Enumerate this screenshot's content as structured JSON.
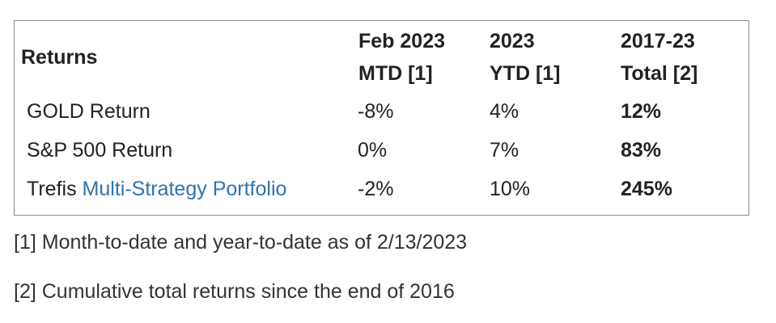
{
  "table": {
    "header": {
      "label": "Returns",
      "columns": [
        {
          "line1": "Feb 2023",
          "line2": "MTD [1]"
        },
        {
          "line1": "2023",
          "line2": "YTD [1]"
        },
        {
          "line1": "2017-23",
          "line2": "Total [2]"
        }
      ]
    },
    "rows": [
      {
        "label": "GOLD Return",
        "mtd": "-8%",
        "ytd": "4%",
        "total": "12%"
      },
      {
        "label": "S&P 500 Return",
        "mtd": "0%",
        "ytd": "7%",
        "total": "83%"
      },
      {
        "label_prefix": "Trefis ",
        "label_link": "Multi-Strategy Portfolio",
        "mtd": "-2%",
        "ytd": "10%",
        "total": "245%"
      }
    ]
  },
  "notes": [
    "[1] Month-to-date and year-to-date as of 2/13/2023",
    "[2] Cumulative total returns since the end of 2016"
  ]
}
